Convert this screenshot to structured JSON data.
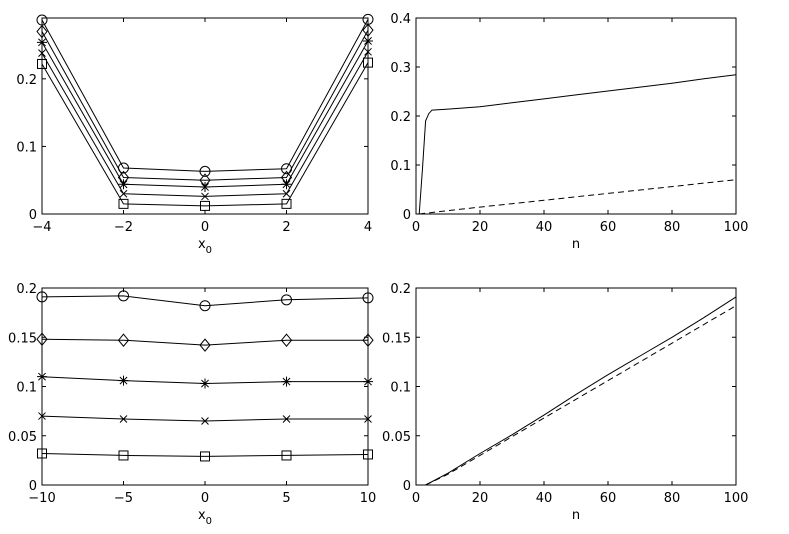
{
  "chart_data": [
    {
      "type": "line",
      "xlabel": "x",
      "xlabel_sub": "0",
      "ylabel": "",
      "xlim": [
        -4,
        4
      ],
      "ylim": [
        0,
        0.29
      ],
      "xticks": [
        -4,
        -2,
        0,
        2,
        4
      ],
      "xtick_labels": [
        "−4",
        "−2",
        "0",
        "2",
        "4"
      ],
      "yticks": [
        0,
        0.1,
        0.2
      ],
      "ytick_labels": [
        "0",
        "0.1",
        "0.2"
      ],
      "x": [
        -4,
        -2,
        0,
        2,
        4
      ],
      "series": [
        {
          "marker": "circle",
          "values": [
            0.287,
            0.068,
            0.063,
            0.067,
            0.288
          ]
        },
        {
          "marker": "diamond",
          "values": [
            0.27,
            0.054,
            0.05,
            0.054,
            0.272
          ]
        },
        {
          "marker": "star",
          "values": [
            0.254,
            0.044,
            0.04,
            0.044,
            0.256
          ]
        },
        {
          "marker": "x",
          "values": [
            0.238,
            0.03,
            0.026,
            0.03,
            0.24
          ]
        },
        {
          "marker": "square",
          "values": [
            0.222,
            0.015,
            0.012,
            0.015,
            0.224
          ]
        }
      ]
    },
    {
      "type": "line",
      "xlabel": "n",
      "ylabel": "",
      "xlim": [
        0,
        100
      ],
      "ylim": [
        0,
        0.4
      ],
      "xticks": [
        0,
        20,
        40,
        60,
        80,
        100
      ],
      "xtick_labels": [
        "0",
        "20",
        "40",
        "60",
        "80",
        "100"
      ],
      "yticks": [
        0,
        0.1,
        0.2,
        0.3,
        0.4
      ],
      "ytick_labels": [
        "0",
        "0.1",
        "0.2",
        "0.3",
        "0.4"
      ],
      "series": [
        {
          "style": "solid",
          "x": [
            1,
            2,
            3,
            4,
            5,
            10,
            20,
            30,
            40,
            50,
            60,
            70,
            80,
            90,
            100
          ],
          "values": [
            0.0,
            0.09,
            0.19,
            0.205,
            0.212,
            0.214,
            0.219,
            0.227,
            0.235,
            0.243,
            0.251,
            0.259,
            0.267,
            0.276,
            0.284
          ]
        },
        {
          "style": "dashed",
          "x": [
            1,
            10,
            20,
            30,
            40,
            50,
            60,
            70,
            80,
            90,
            100
          ],
          "values": [
            0.0,
            0.007,
            0.014,
            0.021,
            0.028,
            0.035,
            0.042,
            0.049,
            0.056,
            0.063,
            0.07
          ]
        }
      ]
    },
    {
      "type": "line",
      "xlabel": "x",
      "xlabel_sub": "0",
      "ylabel": "",
      "xlim": [
        -10,
        10
      ],
      "ylim": [
        0,
        0.2
      ],
      "xticks": [
        -10,
        -5,
        0,
        5,
        10
      ],
      "xtick_labels": [
        "−10",
        "−5",
        "0",
        "5",
        "10"
      ],
      "yticks": [
        0,
        0.05,
        0.1,
        0.15,
        0.2
      ],
      "ytick_labels": [
        "0",
        "0.05",
        "0.1",
        "0.15",
        "0.2"
      ],
      "x": [
        -10,
        -5,
        0,
        5,
        10
      ],
      "series": [
        {
          "marker": "circle",
          "values": [
            0.191,
            0.192,
            0.182,
            0.188,
            0.19
          ]
        },
        {
          "marker": "diamond",
          "values": [
            0.148,
            0.147,
            0.142,
            0.147,
            0.147
          ]
        },
        {
          "marker": "star",
          "values": [
            0.11,
            0.106,
            0.103,
            0.105,
            0.105
          ]
        },
        {
          "marker": "x",
          "values": [
            0.07,
            0.067,
            0.065,
            0.067,
            0.067
          ]
        },
        {
          "marker": "square",
          "values": [
            0.032,
            0.03,
            0.029,
            0.03,
            0.031
          ]
        }
      ]
    },
    {
      "type": "line",
      "xlabel": "n",
      "ylabel": "",
      "xlim": [
        0,
        100
      ],
      "ylim": [
        0,
        0.2
      ],
      "xticks": [
        0,
        20,
        40,
        60,
        80,
        100
      ],
      "xtick_labels": [
        "0",
        "20",
        "40",
        "60",
        "80",
        "100"
      ],
      "yticks": [
        0,
        0.05,
        0.1,
        0.15,
        0.2
      ],
      "ytick_labels": [
        "0",
        "0.05",
        "0.1",
        "0.15",
        "0.2"
      ],
      "series": [
        {
          "style": "solid",
          "x": [
            3,
            10,
            20,
            30,
            40,
            50,
            60,
            70,
            80,
            90,
            100
          ],
          "values": [
            0.0,
            0.012,
            0.032,
            0.051,
            0.071,
            0.092,
            0.112,
            0.131,
            0.15,
            0.17,
            0.191
          ]
        },
        {
          "style": "dashed",
          "x": [
            3,
            10,
            20,
            30,
            40,
            50,
            60,
            70,
            80,
            90,
            100
          ],
          "values": [
            0.0,
            0.011,
            0.03,
            0.049,
            0.068,
            0.087,
            0.106,
            0.125,
            0.144,
            0.163,
            0.182
          ]
        }
      ]
    }
  ]
}
